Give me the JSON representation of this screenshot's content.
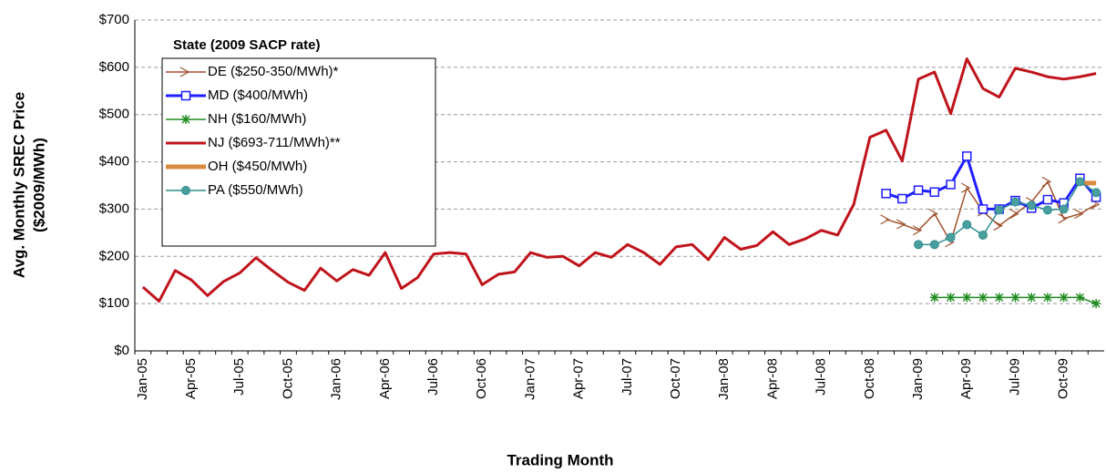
{
  "chart_data": {
    "type": "line",
    "x_label": "Trading Month",
    "y_label": [
      "Avg. Monthly SREC Price",
      "($2009/MWh)"
    ],
    "legend_title": "State (2009 SACP rate)",
    "legend": "upper left",
    "grid": true,
    "ylim": [
      0,
      700
    ],
    "yticks": [
      {
        "value": 0,
        "label": "$0"
      },
      {
        "value": 100,
        "label": "$100"
      },
      {
        "value": 200,
        "label": "$200"
      },
      {
        "value": 300,
        "label": "$300"
      },
      {
        "value": 400,
        "label": "$400"
      },
      {
        "value": 500,
        "label": "$500"
      },
      {
        "value": 600,
        "label": "$600"
      },
      {
        "value": 700,
        "label": "$700"
      }
    ],
    "categories": [
      "Jan-05",
      null,
      null,
      "Apr-05",
      null,
      null,
      "Jul-05",
      null,
      null,
      "Oct-05",
      null,
      null,
      "Jan-06",
      null,
      null,
      "Apr-06",
      null,
      null,
      "Jul-06",
      null,
      null,
      "Oct-06",
      null,
      null,
      "Jan-07",
      null,
      null,
      "Apr-07",
      null,
      null,
      "Jul-07",
      null,
      null,
      "Oct-07",
      null,
      null,
      "Jan-08",
      null,
      null,
      "Apr-08",
      null,
      null,
      "Jul-08",
      null,
      null,
      "Oct-08",
      null,
      null,
      "Jan-09",
      null,
      null,
      "Apr-09",
      null,
      null,
      "Jul-09",
      null,
      null,
      "Oct-09",
      null,
      null
    ],
    "series": [
      {
        "name": "DE ($250-350/MWh)*",
        "color": "#a0522d",
        "marker": "arrow",
        "width": 1.5,
        "values": [
          null,
          null,
          null,
          null,
          null,
          null,
          null,
          null,
          null,
          null,
          null,
          null,
          null,
          null,
          null,
          null,
          null,
          null,
          null,
          null,
          null,
          null,
          null,
          null,
          null,
          null,
          null,
          null,
          null,
          null,
          null,
          null,
          null,
          null,
          null,
          null,
          null,
          null,
          null,
          null,
          null,
          null,
          null,
          null,
          null,
          null,
          278,
          268,
          255,
          290,
          230,
          345,
          295,
          265,
          290,
          315,
          358,
          280,
          290,
          310
        ]
      },
      {
        "name": "MD ($400/MWh)",
        "color": "#1f1fff",
        "marker": "square",
        "width": 3,
        "values": [
          null,
          null,
          null,
          null,
          null,
          null,
          null,
          null,
          null,
          null,
          null,
          null,
          null,
          null,
          null,
          null,
          null,
          null,
          null,
          null,
          null,
          null,
          null,
          null,
          null,
          null,
          null,
          null,
          null,
          null,
          null,
          null,
          null,
          null,
          null,
          null,
          null,
          null,
          null,
          null,
          null,
          null,
          null,
          null,
          null,
          null,
          333,
          322,
          340,
          336,
          352,
          412,
          300,
          300,
          318,
          302,
          320,
          313,
          365,
          325
        ]
      },
      {
        "name": "NH ($160/MWh)",
        "color": "#228b22",
        "marker": "star",
        "width": 1.5,
        "values": [
          null,
          null,
          null,
          null,
          null,
          null,
          null,
          null,
          null,
          null,
          null,
          null,
          null,
          null,
          null,
          null,
          null,
          null,
          null,
          null,
          null,
          null,
          null,
          null,
          null,
          null,
          null,
          null,
          null,
          null,
          null,
          null,
          null,
          null,
          null,
          null,
          null,
          null,
          null,
          null,
          null,
          null,
          null,
          null,
          null,
          null,
          null,
          null,
          null,
          113,
          113,
          113,
          113,
          113,
          113,
          113,
          113,
          113,
          113,
          100
        ]
      },
      {
        "name": "NJ ($693-711/MWh)**",
        "color": "#c0141c",
        "marker": "none",
        "width": 3,
        "values": [
          135,
          105,
          170,
          150,
          117,
          147,
          165,
          197,
          170,
          145,
          128,
          175,
          148,
          172,
          160,
          208,
          132,
          155,
          205,
          208,
          205,
          140,
          162,
          167,
          208,
          198,
          200,
          180,
          208,
          198,
          225,
          208,
          183,
          220,
          225,
          193,
          240,
          215,
          223,
          252,
          225,
          237,
          255,
          245,
          310,
          452,
          467,
          402,
          575,
          590,
          502,
          618,
          555,
          537,
          598,
          590,
          580,
          575,
          580,
          587
        ]
      },
      {
        "name": "OH ($450/MWh)",
        "color": "#d98c3f",
        "marker": "none",
        "width": 5,
        "values": [
          null,
          null,
          null,
          null,
          null,
          null,
          null,
          null,
          null,
          null,
          null,
          null,
          null,
          null,
          null,
          null,
          null,
          null,
          null,
          null,
          null,
          null,
          null,
          null,
          null,
          null,
          null,
          null,
          null,
          null,
          null,
          null,
          null,
          null,
          null,
          null,
          null,
          null,
          null,
          null,
          null,
          null,
          null,
          null,
          null,
          null,
          null,
          null,
          null,
          null,
          null,
          null,
          null,
          null,
          null,
          null,
          null,
          null,
          355,
          355
        ]
      },
      {
        "name": "PA ($550/MWh)",
        "color": "#2f8f8f",
        "marker": "circle",
        "width": 1.5,
        "values": [
          null,
          null,
          null,
          null,
          null,
          null,
          null,
          null,
          null,
          null,
          null,
          null,
          null,
          null,
          null,
          null,
          null,
          null,
          null,
          null,
          null,
          null,
          null,
          null,
          null,
          null,
          null,
          null,
          null,
          null,
          null,
          null,
          null,
          null,
          null,
          null,
          null,
          null,
          null,
          null,
          null,
          null,
          null,
          null,
          null,
          null,
          null,
          null,
          225,
          225,
          240,
          267,
          245,
          298,
          315,
          308,
          298,
          300,
          358,
          335
        ]
      }
    ]
  }
}
